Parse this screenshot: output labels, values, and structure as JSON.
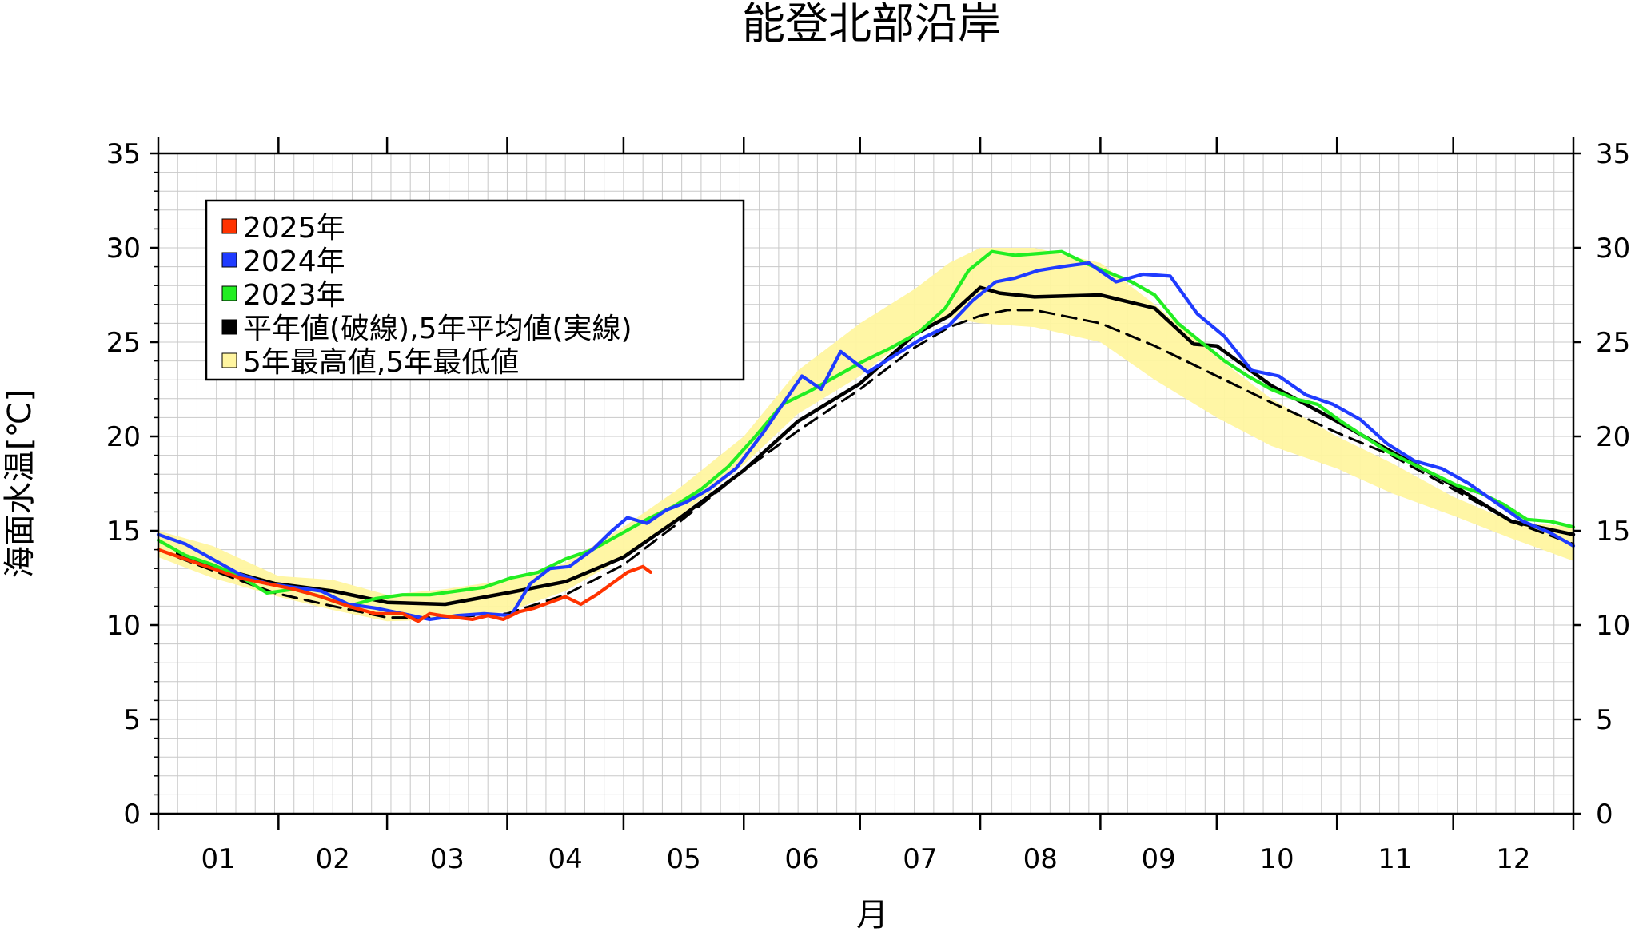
{
  "chart_data": {
    "type": "line",
    "title": "能登北部沿岸",
    "xlabel": "月",
    "ylabel": "海面水温[℃]",
    "ylim": [
      0,
      35
    ],
    "xlim": [
      1,
      366
    ],
    "y_ticks": [
      0,
      5,
      10,
      15,
      20,
      25,
      30,
      35
    ],
    "y_tick_labels": [
      "0",
      "5",
      "10",
      "15",
      "20",
      "25",
      "30",
      "35"
    ],
    "x_tick_labels": [
      "01",
      "02",
      "03",
      "04",
      "05",
      "06",
      "07",
      "08",
      "09",
      "10",
      "11",
      "12"
    ],
    "grid": true,
    "legend_position": "top-left",
    "legend": [
      {
        "label": "2025年",
        "color": "#ff3300"
      },
      {
        "label": "2024年",
        "color": "#1f3bff"
      },
      {
        "label": "2023年",
        "color": "#22ee22"
      },
      {
        "label": "平年値(破線),5年平均値(実線)",
        "color": "#000000"
      },
      {
        "label": "5年最高値,5年最低値",
        "color": "#fff5a0"
      }
    ],
    "band": {
      "name": "5年最高値,5年最低値",
      "color": "#fff5a0",
      "x": [
        1,
        15,
        32,
        46,
        60,
        75,
        91,
        106,
        121,
        135,
        152,
        166,
        182,
        196,
        205,
        213,
        227,
        244,
        258,
        274,
        288,
        305,
        319,
        335,
        350,
        366
      ],
      "upper": [
        15.0,
        14.2,
        12.6,
        12.4,
        11.6,
        11.9,
        12.4,
        13.3,
        15.2,
        17.2,
        20.0,
        23.5,
        26.0,
        27.8,
        29.2,
        30.0,
        30.0,
        29.2,
        27.0,
        24.2,
        22.0,
        20.0,
        18.6,
        16.8,
        15.5,
        15.2
      ],
      "lower": [
        13.6,
        12.5,
        11.5,
        10.8,
        10.2,
        10.3,
        10.7,
        11.8,
        13.6,
        15.7,
        18.5,
        21.2,
        23.2,
        25.5,
        26.3,
        26.0,
        25.8,
        25.0,
        23.0,
        21.0,
        19.5,
        18.3,
        17.0,
        15.8,
        14.6,
        13.4
      ]
    },
    "series": [
      {
        "name": "2025年",
        "color": "#ff3300",
        "x": [
          1,
          8,
          15,
          22,
          29,
          36,
          43,
          50,
          57,
          64,
          68,
          71,
          74,
          78,
          82,
          86,
          90,
          94,
          98,
          102,
          106,
          110,
          114,
          118,
          122,
          126,
          128
        ],
        "y": [
          14.0,
          13.5,
          13.0,
          12.5,
          12.2,
          11.9,
          11.5,
          11.0,
          10.6,
          10.6,
          10.2,
          10.6,
          10.5,
          10.4,
          10.3,
          10.5,
          10.3,
          10.7,
          10.9,
          11.2,
          11.5,
          11.1,
          11.6,
          12.2,
          12.8,
          13.1,
          12.8
        ]
      },
      {
        "name": "2024年",
        "color": "#1f3bff",
        "x": [
          1,
          8,
          15,
          22,
          29,
          36,
          43,
          50,
          57,
          64,
          71,
          78,
          85,
          92,
          97,
          102,
          107,
          113,
          118,
          122,
          127,
          132,
          137,
          143,
          150,
          157,
          163,
          167,
          172,
          177,
          184,
          191,
          198,
          205,
          211,
          217,
          222,
          228,
          234,
          241,
          248,
          255,
          262,
          269,
          276,
          283,
          290,
          297,
          304,
          311,
          318,
          325,
          332,
          339,
          346,
          353,
          360,
          366
        ],
        "y": [
          14.8,
          14.3,
          13.5,
          12.7,
          12.2,
          12.0,
          11.8,
          11.1,
          10.9,
          10.6,
          10.3,
          10.5,
          10.6,
          10.5,
          12.2,
          13.0,
          13.1,
          14.0,
          15.0,
          15.7,
          15.4,
          16.1,
          16.5,
          17.2,
          18.3,
          20.2,
          22.0,
          23.2,
          22.5,
          24.5,
          23.4,
          24.3,
          25.2,
          25.9,
          27.2,
          28.2,
          28.4,
          28.8,
          29.0,
          29.2,
          28.2,
          28.6,
          28.5,
          26.5,
          25.3,
          23.5,
          23.2,
          22.2,
          21.7,
          20.9,
          19.6,
          18.7,
          18.3,
          17.5,
          16.5,
          15.5,
          14.9,
          14.2
        ]
      },
      {
        "name": "2023年",
        "color": "#22ee22",
        "x": [
          1,
          8,
          15,
          22,
          29,
          36,
          43,
          50,
          57,
          64,
          71,
          78,
          85,
          92,
          99,
          106,
          113,
          120,
          127,
          134,
          141,
          148,
          155,
          162,
          169,
          176,
          183,
          190,
          197,
          204,
          210,
          216,
          222,
          228,
          234,
          240,
          246,
          252,
          258,
          264,
          270,
          276,
          282,
          288,
          294,
          300,
          306,
          312,
          318,
          324,
          330,
          336,
          342,
          348,
          354,
          360,
          366
        ],
        "y": [
          14.5,
          13.7,
          13.2,
          12.6,
          11.7,
          11.9,
          11.5,
          11.0,
          11.4,
          11.6,
          11.6,
          11.8,
          12.0,
          12.5,
          12.8,
          13.5,
          14.0,
          14.8,
          15.6,
          16.3,
          17.2,
          18.4,
          20.0,
          21.7,
          22.4,
          23.2,
          24.0,
          24.7,
          25.5,
          26.8,
          28.8,
          29.8,
          29.6,
          29.7,
          29.8,
          29.2,
          28.7,
          28.2,
          27.5,
          26.0,
          25.0,
          24.0,
          23.2,
          22.5,
          22.0,
          21.7,
          20.8,
          20.0,
          19.2,
          18.6,
          18.0,
          17.4,
          17.0,
          16.4,
          15.6,
          15.5,
          15.2
        ]
      },
      {
        "name": "5年平均値",
        "color": "#000000",
        "dash": "solid",
        "x": [
          6,
          15,
          31,
          46,
          60,
          75,
          91,
          106,
          121,
          135,
          152,
          166,
          182,
          196,
          205,
          213,
          218,
          227,
          244,
          258,
          268,
          274,
          288,
          305,
          319,
          335,
          350,
          366
        ],
        "y": [
          13.8,
          13.1,
          12.2,
          11.8,
          11.2,
          11.1,
          11.7,
          12.3,
          13.6,
          15.6,
          18.2,
          20.8,
          22.8,
          25.4,
          26.4,
          27.9,
          27.6,
          27.4,
          27.5,
          26.8,
          24.9,
          24.8,
          22.7,
          20.8,
          19.2,
          17.4,
          15.5,
          14.8
        ]
      },
      {
        "name": "平年値",
        "color": "#000000",
        "dash": "dashed",
        "x": [
          6,
          15,
          31,
          46,
          60,
          75,
          91,
          106,
          121,
          135,
          152,
          166,
          182,
          196,
          205,
          213,
          220,
          227,
          244,
          258,
          274,
          288,
          305,
          319,
          335,
          350,
          366
        ],
        "y": [
          13.6,
          12.9,
          11.7,
          11.0,
          10.4,
          10.4,
          10.6,
          11.6,
          13.2,
          15.4,
          18.2,
          20.3,
          22.5,
          24.7,
          25.8,
          26.4,
          26.7,
          26.7,
          26.0,
          24.8,
          23.2,
          21.8,
          20.2,
          19.0,
          17.2,
          15.5,
          14.3
        ]
      }
    ]
  }
}
